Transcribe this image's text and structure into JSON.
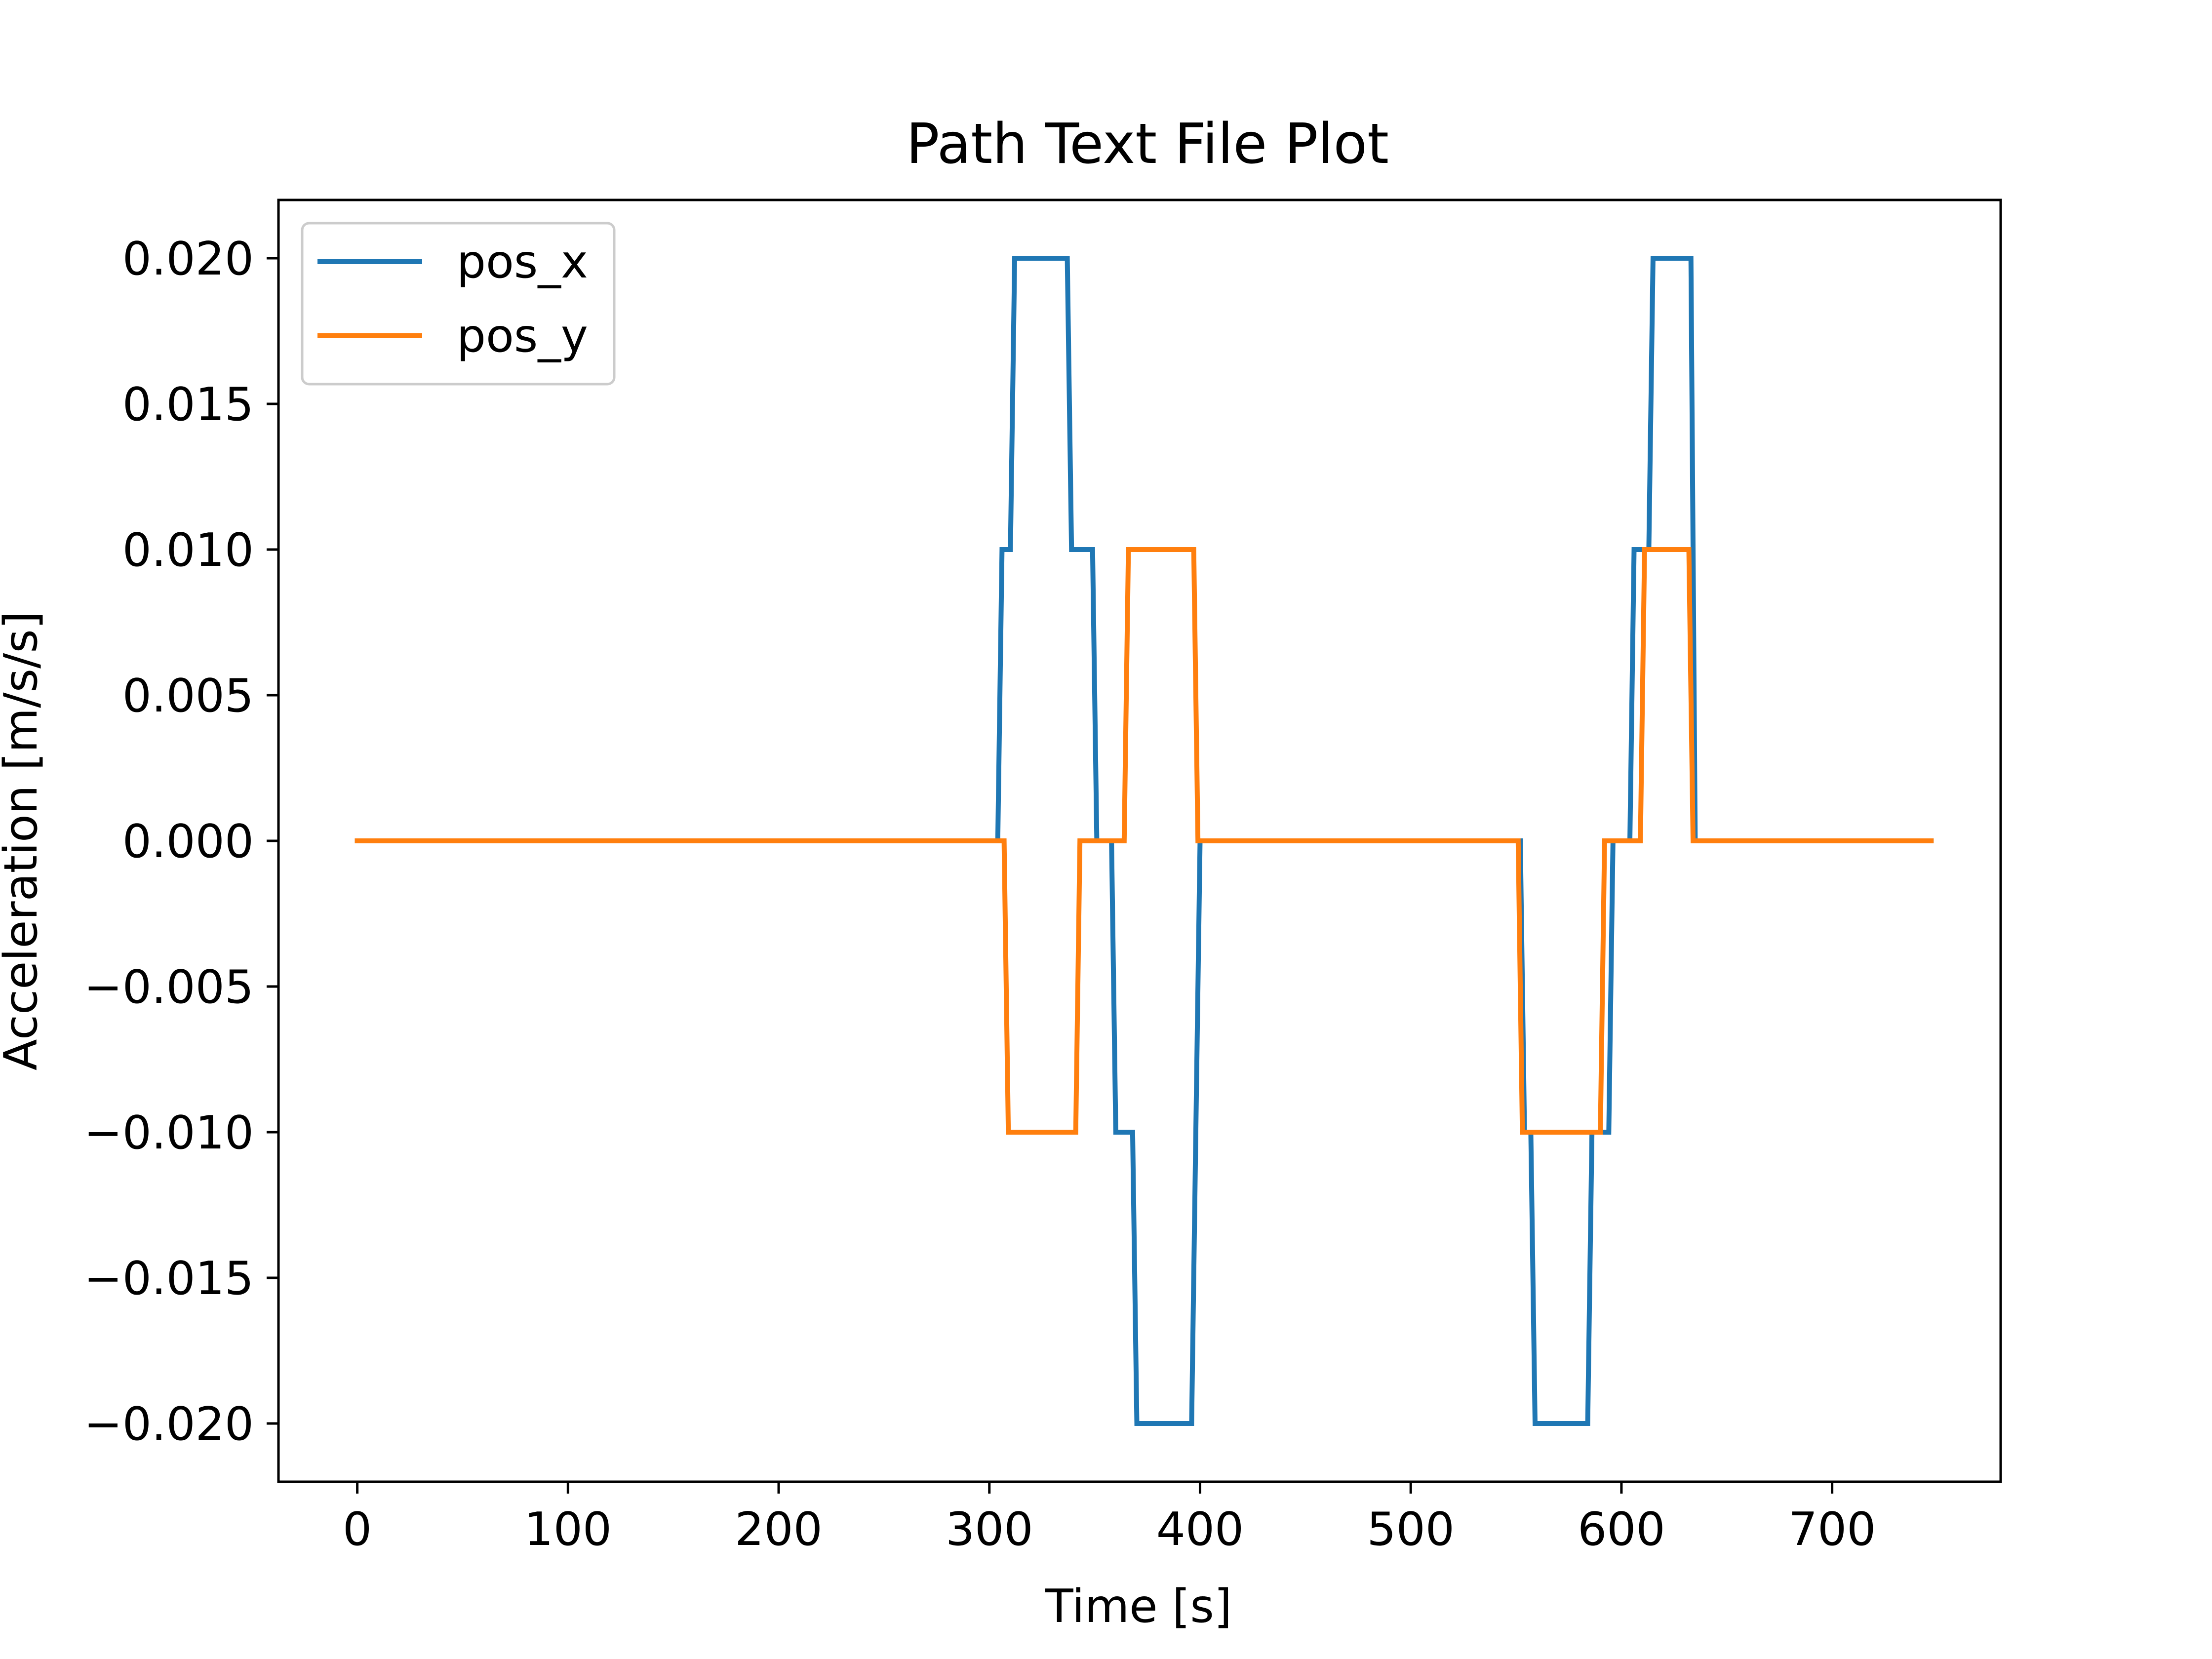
{
  "chart_data": {
    "type": "line",
    "title": "Path Text File Plot",
    "xlabel": "Time [s]",
    "ylabel": "Acceleration [m/s/s]",
    "xlim": [
      -37.4,
      780
    ],
    "ylim": [
      -0.022,
      0.022
    ],
    "xticks": [
      0,
      100,
      200,
      300,
      400,
      500,
      600,
      700
    ],
    "xtick_labels": [
      "0",
      "100",
      "200",
      "300",
      "400",
      "500",
      "600",
      "700"
    ],
    "yticks": [
      0.02,
      0.015,
      0.01,
      0.005,
      0.0,
      -0.005,
      -0.01,
      -0.015,
      -0.02
    ],
    "ytick_labels": [
      "0.020",
      "0.015",
      "0.010",
      "0.005",
      "0.000",
      "−0.005",
      "−0.010",
      "−0.015",
      "−0.020"
    ],
    "grid": false,
    "legend_position": "upper-left",
    "series": [
      {
        "name": "pos_x",
        "color": "#1f77b4",
        "x": [
          0,
          304,
          306,
          310,
          312,
          337,
          339,
          349,
          351,
          358,
          360,
          368,
          370,
          396,
          398,
          400,
          552,
          554,
          557,
          559,
          584,
          586,
          594,
          596,
          604,
          606,
          613,
          615,
          633,
          635,
          747
        ],
        "y": [
          0,
          0,
          0.01,
          0.01,
          0.02,
          0.02,
          0.01,
          0.01,
          0,
          0,
          -0.01,
          -0.01,
          -0.02,
          -0.02,
          -0.01,
          0,
          0,
          -0.01,
          -0.01,
          -0.02,
          -0.02,
          -0.01,
          -0.01,
          0,
          0,
          0.01,
          0.01,
          0.02,
          0.02,
          0,
          0
        ]
      },
      {
        "name": "pos_y",
        "color": "#ff7f0e",
        "x": [
          0,
          307,
          309,
          341,
          343,
          364,
          366,
          397,
          399,
          551,
          553,
          590,
          592,
          609,
          611,
          632,
          634,
          747
        ],
        "y": [
          0,
          0,
          -0.01,
          -0.01,
          0,
          0,
          0.01,
          0.01,
          0,
          0,
          -0.01,
          -0.01,
          0,
          0,
          0.01,
          0.01,
          0,
          0
        ]
      }
    ]
  }
}
